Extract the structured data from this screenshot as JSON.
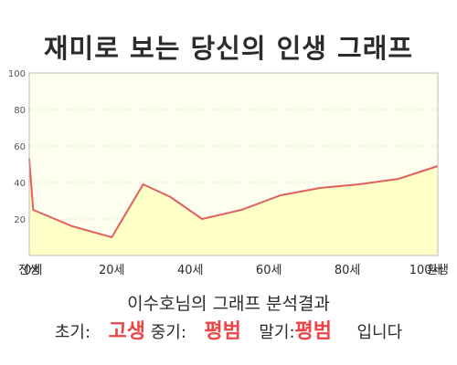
{
  "title": "재미로 보는 당신의 인생 그래프",
  "summary": "이수호님의 그래프 분석결과",
  "result": {
    "early_label": "초기:",
    "early_value": "고생",
    "mid_label": "중기:",
    "mid_value": "평범",
    "late_label": "말기:",
    "late_value": "평범",
    "suffix": "입니다"
  },
  "colors": {
    "line": "#e06060",
    "fill": "#ffffc8",
    "plot_bg": "#ffffef",
    "grid": "#dddddd",
    "accent": "#ee4444"
  },
  "chart_data": {
    "type": "area",
    "x": [
      -1,
      0,
      10,
      20,
      28,
      35,
      43,
      53,
      63,
      73,
      83,
      93,
      103
    ],
    "values": [
      53,
      25,
      16,
      10,
      39,
      32,
      20,
      25,
      33,
      37,
      39,
      42,
      49
    ],
    "xlim": [
      -1,
      103
    ],
    "ylim": [
      0,
      100
    ],
    "yticks": [
      20,
      40,
      60,
      80,
      100
    ],
    "xticks": [
      {
        "x": -1,
        "label": "전생"
      },
      {
        "x": 0,
        "label": "0세"
      },
      {
        "x": 20,
        "label": "20세"
      },
      {
        "x": 40,
        "label": "40세"
      },
      {
        "x": 60,
        "label": "60세"
      },
      {
        "x": 80,
        "label": "80세"
      },
      {
        "x": 100,
        "label": "100세"
      },
      {
        "x": 103,
        "label": "환생"
      }
    ],
    "grid": true
  }
}
